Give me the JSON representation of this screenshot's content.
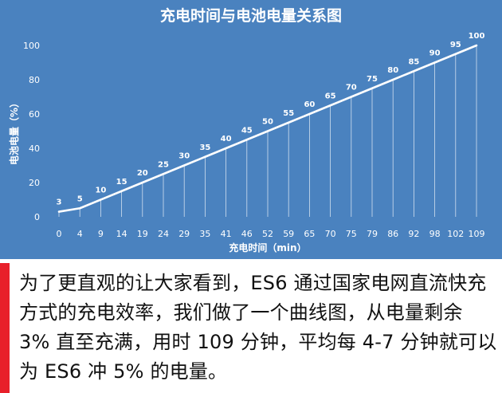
{
  "chart_data": {
    "type": "line",
    "title": "充电时间与电池电量关系图",
    "xlabel": "充电时间（min）",
    "ylabel": "电池电量（%）",
    "x": [
      0,
      4,
      9,
      14,
      19,
      24,
      29,
      35,
      41,
      46,
      52,
      59,
      65,
      70,
      75,
      79,
      86,
      92,
      98,
      102,
      109
    ],
    "y": [
      3,
      5,
      10,
      15,
      20,
      25,
      30,
      35,
      40,
      45,
      50,
      55,
      60,
      65,
      70,
      75,
      80,
      85,
      90,
      95,
      100
    ],
    "xticks": [
      "0",
      "4",
      "9",
      "14",
      "19",
      "24",
      "29",
      "35",
      "41",
      "46",
      "52",
      "59",
      "65",
      "70",
      "75",
      "79",
      "86",
      "92",
      "98",
      "102",
      "109"
    ],
    "yticks": [
      "0",
      "20",
      "40",
      "60",
      "80",
      "100"
    ],
    "ylim": [
      0,
      100
    ],
    "grid": false,
    "legend": "none",
    "background_color": "#4a82bf",
    "line_color": "#ffffff"
  },
  "caption": {
    "text": "为了更直观的让大家看到，ES6 通过国家电网直流快充方式的充电效率，我们做了一个曲线图，从电量剩余 3% 直至充满，用时 109 分钟，平均每 4-7 分钟就可以为 ES6 冲 5% 的电量。",
    "accent_color": "#e8202a"
  }
}
